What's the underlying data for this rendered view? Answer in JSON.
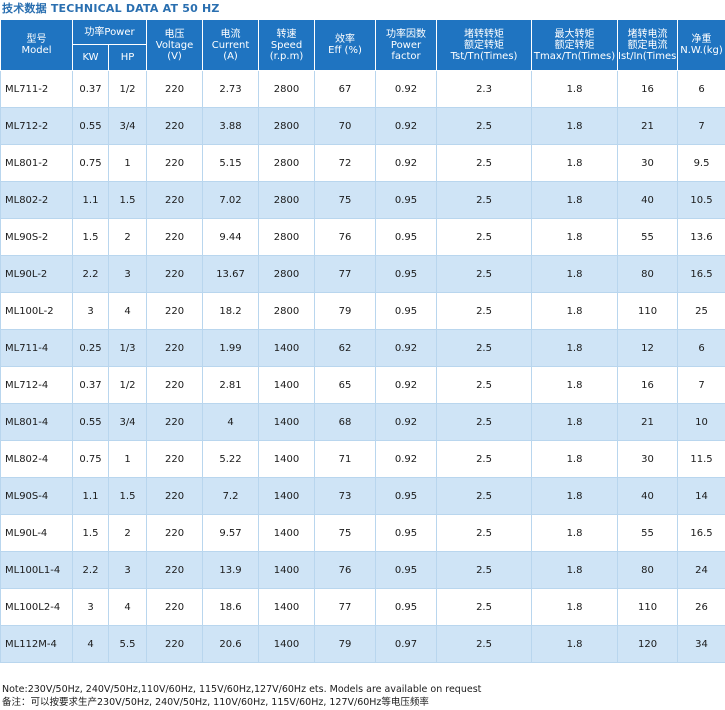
{
  "heading": "技术数据  TECHNICAL DATA AT 50 HZ",
  "columns": {
    "model": {
      "zh": "型号",
      "en": "Model"
    },
    "power": {
      "zh": "功率Power",
      "kw": "KW",
      "hp": "HP"
    },
    "voltage": {
      "zh": "电压",
      "en": "Voltage",
      "unit": "(V)"
    },
    "current": {
      "zh": "电流",
      "en": "Current",
      "unit": "(A)"
    },
    "speed": {
      "zh": "转速",
      "en": "Speed",
      "unit": "(r.p.m)"
    },
    "eff": {
      "zh": "效率",
      "en": "Eff (%)"
    },
    "pf": {
      "zh": "功率因数",
      "en": "Power",
      "en2": "factor"
    },
    "tst": {
      "zh": "堵转转矩",
      "zh2": "额定转矩",
      "en": "Tst/Tn(Times)"
    },
    "tmax": {
      "zh": "最大转矩",
      "zh2": "额定转矩",
      "en": "Tmax/Tn(Times)"
    },
    "ist": {
      "zh": "堵转电流",
      "zh2": "额定电流",
      "en": "Ist/In(Times)"
    },
    "nw": {
      "zh": "净重",
      "en": "N.W.(kg)"
    }
  },
  "rows": [
    [
      "ML711-2",
      "0.37",
      "1/2",
      "220",
      "2.73",
      "2800",
      "67",
      "0.92",
      "2.3",
      "1.8",
      "16",
      "6"
    ],
    [
      "ML712-2",
      "0.55",
      "3/4",
      "220",
      "3.88",
      "2800",
      "70",
      "0.92",
      "2.5",
      "1.8",
      "21",
      "7"
    ],
    [
      "ML801-2",
      "0.75",
      "1",
      "220",
      "5.15",
      "2800",
      "72",
      "0.92",
      "2.5",
      "1.8",
      "30",
      "9.5"
    ],
    [
      "ML802-2",
      "1.1",
      "1.5",
      "220",
      "7.02",
      "2800",
      "75",
      "0.95",
      "2.5",
      "1.8",
      "40",
      "10.5"
    ],
    [
      "ML90S-2",
      "1.5",
      "2",
      "220",
      "9.44",
      "2800",
      "76",
      "0.95",
      "2.5",
      "1.8",
      "55",
      "13.6"
    ],
    [
      "ML90L-2",
      "2.2",
      "3",
      "220",
      "13.67",
      "2800",
      "77",
      "0.95",
      "2.5",
      "1.8",
      "80",
      "16.5"
    ],
    [
      "ML100L-2",
      "3",
      "4",
      "220",
      "18.2",
      "2800",
      "79",
      "0.95",
      "2.5",
      "1.8",
      "110",
      "25"
    ],
    [
      "ML711-4",
      "0.25",
      "1/3",
      "220",
      "1.99",
      "1400",
      "62",
      "0.92",
      "2.5",
      "1.8",
      "12",
      "6"
    ],
    [
      "ML712-4",
      "0.37",
      "1/2",
      "220",
      "2.81",
      "1400",
      "65",
      "0.92",
      "2.5",
      "1.8",
      "16",
      "7"
    ],
    [
      "ML801-4",
      "0.55",
      "3/4",
      "220",
      "4",
      "1400",
      "68",
      "0.92",
      "2.5",
      "1.8",
      "21",
      "10"
    ],
    [
      "ML802-4",
      "0.75",
      "1",
      "220",
      "5.22",
      "1400",
      "71",
      "0.92",
      "2.5",
      "1.8",
      "30",
      "11.5"
    ],
    [
      "ML90S-4",
      "1.1",
      "1.5",
      "220",
      "7.2",
      "1400",
      "73",
      "0.95",
      "2.5",
      "1.8",
      "40",
      "14"
    ],
    [
      "ML90L-4",
      "1.5",
      "2",
      "220",
      "9.57",
      "1400",
      "75",
      "0.95",
      "2.5",
      "1.8",
      "55",
      "16.5"
    ],
    [
      "ML100L1-4",
      "2.2",
      "3",
      "220",
      "13.9",
      "1400",
      "76",
      "0.95",
      "2.5",
      "1.8",
      "80",
      "24"
    ],
    [
      "ML100L2-4",
      "3",
      "4",
      "220",
      "18.6",
      "1400",
      "77",
      "0.95",
      "2.5",
      "1.8",
      "110",
      "26"
    ],
    [
      "ML112M-4",
      "4",
      "5.5",
      "220",
      "20.6",
      "1400",
      "79",
      "0.97",
      "2.5",
      "1.8",
      "120",
      "34"
    ]
  ],
  "notes": {
    "en": "Note:230V/50Hz, 240V/50Hz,110V/60Hz, 115V/60Hz,127V/60Hz ets. Models are available on request",
    "zh": "备注：可以按要求生产230V/50Hz, 240V/50Hz, 110V/60Hz, 115V/60Hz, 127V/60Hz等电压频率"
  }
}
